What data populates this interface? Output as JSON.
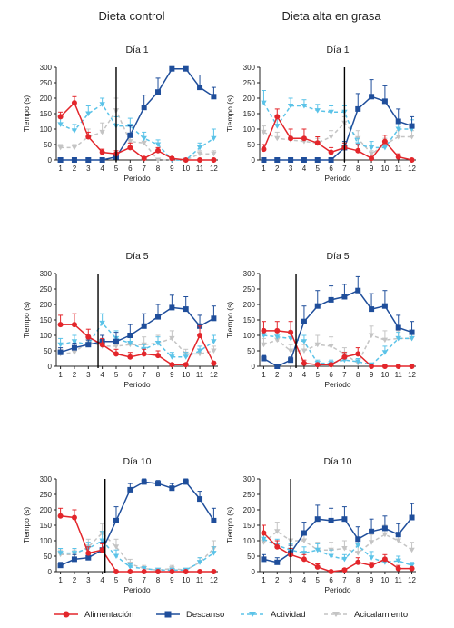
{
  "column_titles": [
    "Dieta control",
    "Dieta alta en grasa"
  ],
  "legend": [
    {
      "label": "Alimentación",
      "color": "#e3262b",
      "marker": "circle",
      "dash": ""
    },
    {
      "label": "Descanso",
      "color": "#1f4e9b",
      "marker": "square",
      "dash": ""
    },
    {
      "label": "Actividad",
      "color": "#5bc3e8",
      "marker": "triangle",
      "dash": "4,3"
    },
    {
      "label": "Acicalamiento",
      "color": "#c4c4c4",
      "marker": "triangle",
      "dash": "4,3"
    }
  ],
  "chart_data": [
    {
      "type": "line",
      "title": "Día 1",
      "xlabel": "Periodo",
      "ylabel": "Tiempo (s)",
      "ylim": [
        0,
        300
      ],
      "yticks": [
        0,
        50,
        100,
        150,
        200,
        250,
        300
      ],
      "x": [
        1,
        2,
        3,
        4,
        5,
        6,
        7,
        8,
        9,
        10,
        11,
        12
      ],
      "vline": 5,
      "series": [
        {
          "name": "Alimentación",
          "values": [
            140,
            185,
            75,
            25,
            20,
            40,
            5,
            30,
            5,
            0,
            0,
            0
          ],
          "err": [
            15,
            20,
            15,
            10,
            10,
            15,
            5,
            10,
            5,
            0,
            0,
            0
          ]
        },
        {
          "name": "Descanso",
          "values": [
            0,
            0,
            0,
            0,
            10,
            80,
            170,
            220,
            295,
            295,
            235,
            205
          ],
          "err": [
            0,
            0,
            0,
            0,
            10,
            30,
            40,
            45,
            5,
            5,
            40,
            30
          ]
        },
        {
          "name": "Actividad",
          "values": [
            115,
            95,
            150,
            180,
            110,
            110,
            70,
            50,
            0,
            0,
            40,
            70
          ],
          "err": [
            20,
            20,
            25,
            20,
            30,
            25,
            20,
            15,
            0,
            0,
            15,
            30
          ]
        },
        {
          "name": "Acicalamiento",
          "values": [
            40,
            40,
            75,
            90,
            160,
            60,
            55,
            0,
            0,
            0,
            20,
            20
          ],
          "err": [
            10,
            10,
            25,
            30,
            40,
            25,
            20,
            0,
            0,
            0,
            10,
            10
          ]
        }
      ]
    },
    {
      "type": "line",
      "title": "Día 1",
      "xlabel": "Periodo",
      "ylabel": "Tiempo (s)",
      "ylim": [
        0,
        300
      ],
      "yticks": [
        0,
        50,
        100,
        150,
        200,
        250,
        300
      ],
      "x": [
        1,
        2,
        3,
        4,
        5,
        6,
        7,
        8,
        9,
        10,
        11,
        12
      ],
      "vline": 7,
      "series": [
        {
          "name": "Alimentación",
          "values": [
            35,
            140,
            70,
            70,
            55,
            25,
            40,
            30,
            5,
            60,
            10,
            0
          ],
          "err": [
            15,
            25,
            30,
            30,
            20,
            15,
            15,
            20,
            5,
            20,
            10,
            0
          ]
        },
        {
          "name": "Descanso",
          "values": [
            0,
            0,
            0,
            0,
            0,
            0,
            40,
            165,
            205,
            190,
            125,
            110
          ],
          "err": [
            0,
            0,
            0,
            0,
            0,
            0,
            20,
            50,
            55,
            50,
            40,
            30
          ]
        },
        {
          "name": "Actividad",
          "values": [
            185,
            110,
            175,
            175,
            160,
            155,
            155,
            50,
            40,
            40,
            100,
            100
          ],
          "err": [
            40,
            30,
            25,
            20,
            20,
            20,
            20,
            20,
            20,
            20,
            30,
            30
          ]
        },
        {
          "name": "Acicalamiento",
          "values": [
            90,
            70,
            65,
            60,
            55,
            75,
            120,
            70,
            20,
            50,
            75,
            75
          ],
          "err": [
            20,
            20,
            15,
            15,
            15,
            20,
            20,
            25,
            10,
            20,
            20,
            20
          ]
        }
      ]
    },
    {
      "type": "line",
      "title": "Día 5",
      "xlabel": "Periodo",
      "ylabel": "Tiempo (s)",
      "ylim": [
        0,
        300
      ],
      "yticks": [
        0,
        50,
        100,
        150,
        200,
        250,
        300
      ],
      "x": [
        1,
        2,
        3,
        4,
        5,
        6,
        7,
        8,
        9,
        10,
        11,
        12
      ],
      "vline": 3.7,
      "series": [
        {
          "name": "Alimentación",
          "values": [
            135,
            135,
            95,
            70,
            40,
            30,
            40,
            35,
            5,
            5,
            100,
            10
          ],
          "err": [
            30,
            35,
            25,
            20,
            15,
            15,
            15,
            15,
            5,
            5,
            30,
            5
          ]
        },
        {
          "name": "Descanso",
          "values": [
            45,
            60,
            70,
            80,
            80,
            100,
            130,
            160,
            190,
            185,
            130,
            155
          ],
          "err": [
            15,
            15,
            15,
            20,
            30,
            35,
            40,
            40,
            40,
            40,
            35,
            40
          ]
        },
        {
          "name": "Actividad",
          "values": [
            70,
            80,
            70,
            140,
            90,
            75,
            55,
            75,
            30,
            30,
            50,
            80
          ],
          "err": [
            20,
            20,
            20,
            30,
            25,
            20,
            15,
            20,
            15,
            15,
            15,
            20
          ]
        },
        {
          "name": "Acicalamiento",
          "values": [
            40,
            45,
            80,
            65,
            65,
            70,
            70,
            75,
            90,
            40,
            40,
            50
          ],
          "err": [
            15,
            15,
            20,
            20,
            25,
            25,
            25,
            25,
            25,
            15,
            15,
            15
          ]
        }
      ]
    },
    {
      "type": "line",
      "title": "Día 5",
      "xlabel": "Periodo",
      "ylabel": "Tiempo (s)",
      "ylim": [
        0,
        300
      ],
      "yticks": [
        0,
        50,
        100,
        150,
        200,
        250,
        300
      ],
      "x": [
        1,
        2,
        3,
        4,
        5,
        6,
        7,
        8,
        9,
        10,
        11,
        12
      ],
      "vline": 3.4,
      "series": [
        {
          "name": "Alimentación",
          "values": [
            115,
            115,
            110,
            10,
            5,
            5,
            30,
            40,
            0,
            0,
            0,
            0
          ],
          "err": [
            30,
            30,
            35,
            10,
            5,
            5,
            15,
            20,
            0,
            0,
            0,
            0
          ]
        },
        {
          "name": "Descanso",
          "values": [
            25,
            0,
            20,
            145,
            195,
            215,
            225,
            245,
            185,
            195,
            125,
            110
          ],
          "err": [
            10,
            0,
            10,
            50,
            50,
            45,
            40,
            45,
            50,
            50,
            40,
            35
          ]
        },
        {
          "name": "Actividad",
          "values": [
            100,
            95,
            90,
            80,
            10,
            10,
            20,
            15,
            5,
            45,
            90,
            90
          ],
          "err": [
            20,
            20,
            25,
            20,
            10,
            10,
            10,
            10,
            5,
            20,
            20,
            20
          ]
        },
        {
          "name": "Acicalamiento",
          "values": [
            70,
            85,
            50,
            50,
            70,
            65,
            40,
            10,
            100,
            85,
            90,
            90
          ],
          "err": [
            20,
            20,
            20,
            20,
            30,
            30,
            20,
            10,
            30,
            30,
            25,
            25
          ]
        }
      ]
    },
    {
      "type": "line",
      "title": "Día 10",
      "xlabel": "Periodo",
      "ylabel": "Tiempo (s)",
      "ylim": [
        0,
        300
      ],
      "yticks": [
        0,
        50,
        100,
        150,
        200,
        250,
        300
      ],
      "x": [
        1,
        2,
        3,
        4,
        5,
        6,
        7,
        8,
        9,
        10,
        11,
        12
      ],
      "vline": 4.2,
      "series": [
        {
          "name": "Alimentación",
          "values": [
            180,
            175,
            60,
            70,
            0,
            0,
            0,
            0,
            0,
            0,
            0,
            0
          ],
          "err": [
            25,
            25,
            20,
            20,
            0,
            0,
            0,
            0,
            0,
            0,
            0,
            0
          ]
        },
        {
          "name": "Descanso",
          "values": [
            20,
            40,
            45,
            70,
            165,
            265,
            290,
            285,
            270,
            290,
            235,
            165
          ],
          "err": [
            10,
            15,
            15,
            25,
            45,
            20,
            10,
            10,
            15,
            10,
            25,
            40
          ]
        },
        {
          "name": "Actividad",
          "values": [
            60,
            60,
            75,
            100,
            50,
            15,
            10,
            5,
            5,
            5,
            30,
            60
          ],
          "err": [
            15,
            15,
            20,
            30,
            20,
            10,
            5,
            5,
            5,
            5,
            15,
            20
          ]
        },
        {
          "name": "Acicalamiento",
          "values": [
            55,
            55,
            80,
            125,
            80,
            25,
            10,
            5,
            10,
            5,
            30,
            75
          ],
          "err": [
            15,
            15,
            25,
            30,
            25,
            15,
            10,
            5,
            10,
            5,
            15,
            25
          ]
        }
      ]
    },
    {
      "type": "line",
      "title": "Día 10",
      "xlabel": "Periodo",
      "ylabel": "Tiempo (s)",
      "ylim": [
        0,
        300
      ],
      "yticks": [
        0,
        50,
        100,
        150,
        200,
        250,
        300
      ],
      "x": [
        1,
        2,
        3,
        4,
        5,
        6,
        7,
        8,
        9,
        10,
        11,
        12
      ],
      "vline": 3,
      "series": [
        {
          "name": "Alimentación",
          "values": [
            125,
            80,
            55,
            40,
            15,
            0,
            5,
            30,
            20,
            40,
            10,
            10
          ],
          "err": [
            25,
            20,
            20,
            15,
            10,
            0,
            5,
            15,
            10,
            15,
            10,
            5
          ]
        },
        {
          "name": "Descanso",
          "values": [
            40,
            30,
            60,
            125,
            170,
            165,
            170,
            105,
            130,
            140,
            120,
            175
          ],
          "err": [
            15,
            15,
            25,
            35,
            45,
            40,
            40,
            40,
            40,
            40,
            35,
            45
          ]
        },
        {
          "name": "Actividad",
          "values": [
            105,
            85,
            70,
            60,
            70,
            50,
            40,
            85,
            45,
            30,
            35,
            20
          ],
          "err": [
            20,
            20,
            20,
            20,
            20,
            20,
            15,
            25,
            20,
            15,
            15,
            10
          ]
        },
        {
          "name": "Acicalamiento",
          "values": [
            95,
            130,
            100,
            100,
            70,
            70,
            75,
            60,
            95,
            120,
            100,
            70
          ],
          "err": [
            25,
            30,
            25,
            25,
            25,
            25,
            25,
            25,
            25,
            30,
            25,
            25
          ]
        }
      ]
    }
  ]
}
